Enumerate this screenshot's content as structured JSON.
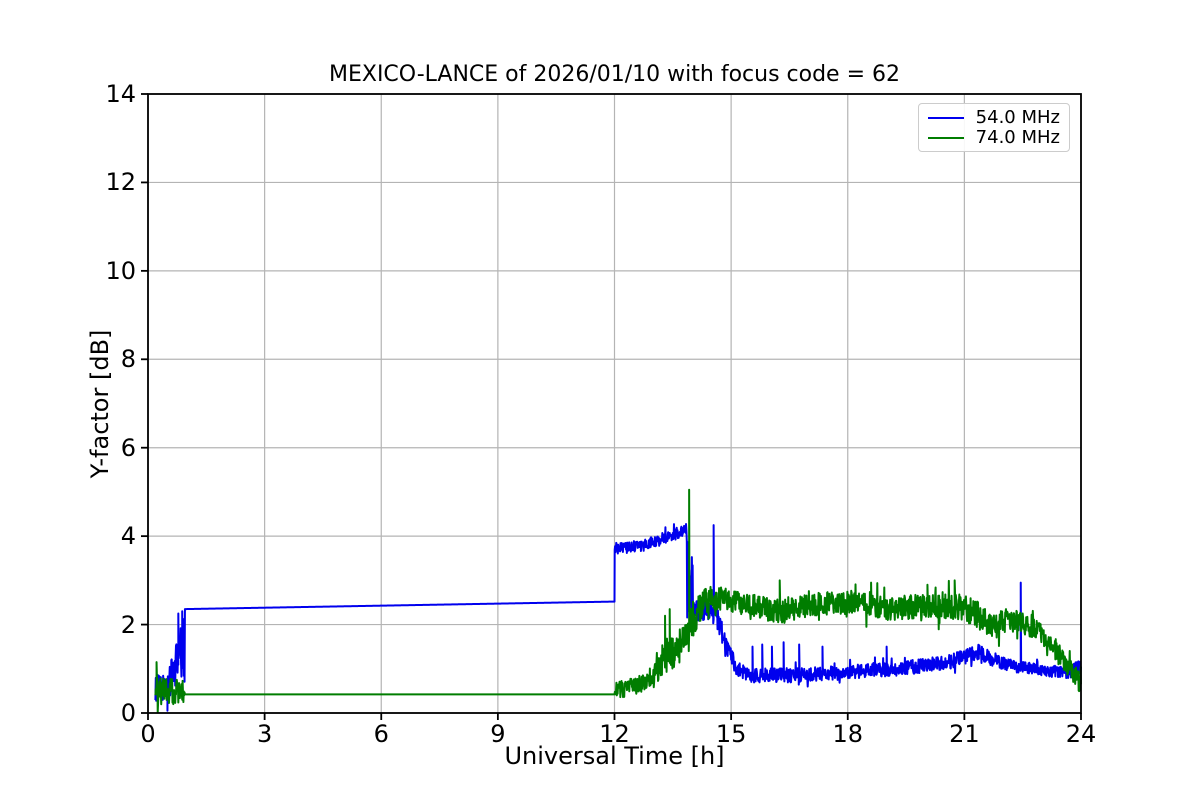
{
  "title": "MEXICO-LANCE of 2026/01/10 with focus code = 62",
  "colors": {
    "series_blue": "#0000ee",
    "series_green": "#007d00",
    "grid": "#b4b4b4",
    "spine": "#000000",
    "background": "#ffffff",
    "legend_border": "#cccccc"
  },
  "legend": {
    "position": "upper right",
    "entries": [
      {
        "label": "54.0 MHz",
        "color": "#0000ee"
      },
      {
        "label": "74.0 MHz",
        "color": "#007d00"
      }
    ]
  },
  "chart_data": {
    "type": "line",
    "title": "MEXICO-LANCE of 2026/01/10 with focus code = 62",
    "xlabel": "Universal Time [h]",
    "ylabel": "Y-factor [dB]",
    "xlim": [
      0,
      24
    ],
    "ylim": [
      0,
      14
    ],
    "xticks": [
      0,
      3,
      6,
      9,
      12,
      15,
      18,
      21,
      24
    ],
    "yticks": [
      0,
      2,
      4,
      6,
      8,
      10,
      12,
      14
    ],
    "grid": true,
    "legend_position": "upper right",
    "encoding_note": "keypoints = [time_h, level_dB, noise_halfwidth_dB]; values between keypoints interpolate linearly with uniform noise band; spikes = [time_h, peak_dB] narrow excursions",
    "series": [
      {
        "name": "54.0 MHz",
        "color": "#0000ee",
        "keypoints": [
          [
            0.19,
            0.55,
            0.3
          ],
          [
            0.45,
            0.6,
            0.3
          ],
          [
            0.6,
            0.8,
            0.4
          ],
          [
            0.75,
            1.2,
            0.5
          ],
          [
            0.88,
            1.35,
            0.7
          ],
          [
            0.94,
            1.5,
            0.8
          ],
          [
            0.95,
            2.35,
            0.0
          ],
          [
            12.0,
            2.52,
            0.0
          ],
          [
            12.005,
            3.72,
            0.13
          ],
          [
            12.7,
            3.78,
            0.13
          ],
          [
            13.3,
            3.95,
            0.13
          ],
          [
            13.85,
            4.15,
            0.14
          ],
          [
            13.87,
            3.2,
            1.05
          ],
          [
            13.98,
            2.9,
            1.0
          ],
          [
            14.06,
            2.3,
            0.28
          ],
          [
            14.35,
            2.35,
            0.22
          ],
          [
            14.6,
            2.25,
            0.28
          ],
          [
            14.85,
            1.6,
            0.22
          ],
          [
            15.15,
            1.0,
            0.17
          ],
          [
            15.45,
            0.85,
            0.16
          ],
          [
            16.5,
            0.85,
            0.16
          ],
          [
            18.0,
            0.92,
            0.16
          ],
          [
            19.5,
            1.02,
            0.16
          ],
          [
            20.6,
            1.15,
            0.16
          ],
          [
            21.35,
            1.38,
            0.17
          ],
          [
            21.8,
            1.18,
            0.15
          ],
          [
            22.3,
            1.05,
            0.13
          ],
          [
            23.0,
            0.97,
            0.13
          ],
          [
            23.6,
            0.9,
            0.14
          ],
          [
            24.0,
            1.05,
            0.17
          ]
        ],
        "spikes": [
          [
            0.5,
            0.05
          ],
          [
            0.78,
            2.25
          ],
          [
            0.88,
            2.3
          ],
          [
            14.55,
            4.25
          ],
          [
            15.55,
            1.5
          ],
          [
            15.8,
            1.55
          ],
          [
            16.05,
            1.5
          ],
          [
            16.35,
            1.6
          ],
          [
            16.75,
            1.55
          ],
          [
            17.35,
            1.5
          ],
          [
            19.0,
            1.5
          ],
          [
            22.45,
            2.95
          ]
        ]
      },
      {
        "name": "74.0 MHz",
        "color": "#007d00",
        "keypoints": [
          [
            0.19,
            0.5,
            0.3
          ],
          [
            0.55,
            0.5,
            0.32
          ],
          [
            0.9,
            0.45,
            0.3
          ],
          [
            0.95,
            0.42,
            0.0
          ],
          [
            12.0,
            0.42,
            0.0
          ],
          [
            12.01,
            0.5,
            0.2
          ],
          [
            12.6,
            0.62,
            0.2
          ],
          [
            13.0,
            0.85,
            0.25
          ],
          [
            13.3,
            1.3,
            0.42
          ],
          [
            13.55,
            1.4,
            0.3
          ],
          [
            13.8,
            1.75,
            0.35
          ],
          [
            14.0,
            2.1,
            0.4
          ],
          [
            14.3,
            2.55,
            0.3
          ],
          [
            14.6,
            2.6,
            0.27
          ],
          [
            15.2,
            2.5,
            0.27
          ],
          [
            15.9,
            2.35,
            0.27
          ],
          [
            16.4,
            2.3,
            0.27
          ],
          [
            17.1,
            2.45,
            0.27
          ],
          [
            18.1,
            2.5,
            0.27
          ],
          [
            19.1,
            2.35,
            0.27
          ],
          [
            20.1,
            2.45,
            0.28
          ],
          [
            20.9,
            2.4,
            0.3
          ],
          [
            21.3,
            2.25,
            0.3
          ],
          [
            21.7,
            1.95,
            0.27
          ],
          [
            22.2,
            2.15,
            0.25
          ],
          [
            22.9,
            1.85,
            0.22
          ],
          [
            23.3,
            1.45,
            0.22
          ],
          [
            23.75,
            0.95,
            0.22
          ],
          [
            24.0,
            0.65,
            0.22
          ]
        ],
        "spikes": [
          [
            0.22,
            1.15
          ],
          [
            13.3,
            2.2
          ],
          [
            13.42,
            2.35
          ],
          [
            13.92,
            5.05
          ],
          [
            16.25,
            3.0
          ],
          [
            18.6,
            2.95
          ],
          [
            20.05,
            2.9
          ],
          [
            20.75,
            3.0
          ]
        ]
      }
    ]
  }
}
